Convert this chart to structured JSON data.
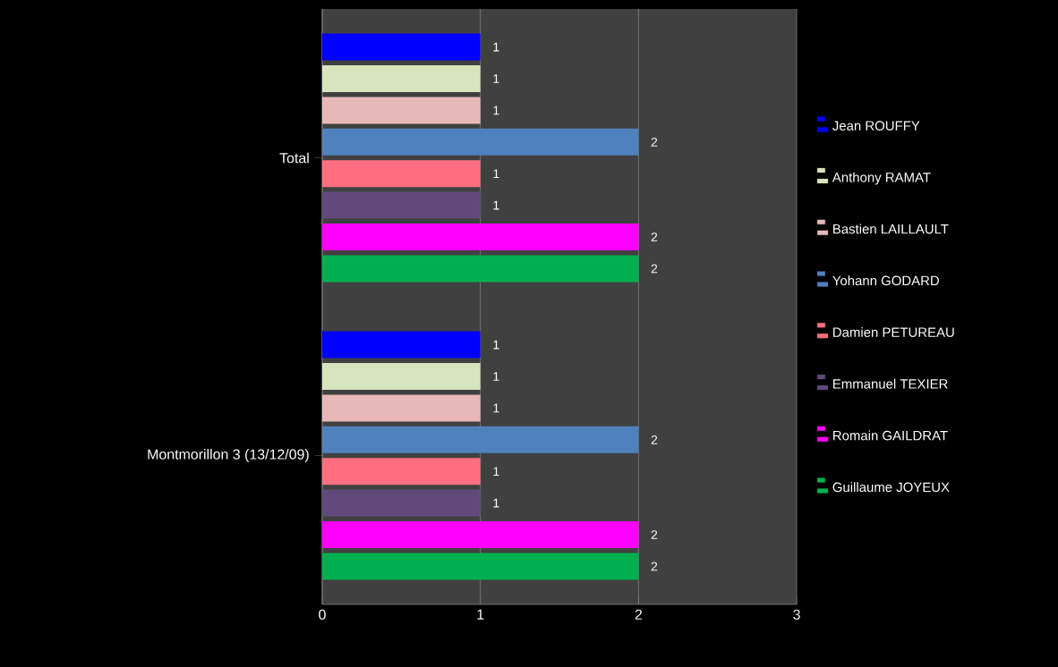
{
  "chart_data": {
    "type": "bar",
    "orientation": "horizontal",
    "categories": [
      "Total",
      "Montmorillon 3 (13/12/09)"
    ],
    "series": [
      {
        "name": "Jean ROUFFY",
        "color": "#0000ff",
        "values": [
          1,
          1
        ]
      },
      {
        "name": "Anthony RAMAT",
        "color": "#d7e4bd",
        "values": [
          1,
          1
        ]
      },
      {
        "name": "Bastien LAILLAULT",
        "color": "#e6b9b8",
        "values": [
          1,
          1
        ]
      },
      {
        "name": "Yohann GODARD",
        "color": "#4f81bd",
        "values": [
          2,
          2
        ]
      },
      {
        "name": "Damien PETUREAU",
        "color": "#ff6f7f",
        "values": [
          1,
          1
        ]
      },
      {
        "name": "Emmanuel TEXIER",
        "color": "#604a7b",
        "values": [
          1,
          1
        ]
      },
      {
        "name": "Romain GAILDRAT",
        "color": "#ff00ff",
        "values": [
          2,
          2
        ]
      },
      {
        "name": "Guillaume JOYEUX",
        "color": "#00b050",
        "values": [
          2,
          2
        ]
      }
    ],
    "xlim": [
      0,
      3
    ],
    "xticks": [
      0,
      1,
      2,
      3
    ],
    "grid": "x",
    "legend": "right",
    "data_labels": true
  }
}
